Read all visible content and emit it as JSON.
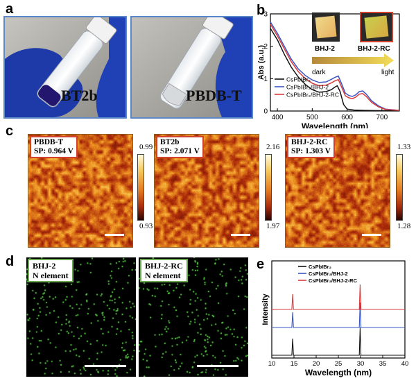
{
  "panels": {
    "a": "a",
    "b": "b",
    "c": "c",
    "d": "d",
    "e": "e"
  },
  "panel_a": {
    "photos": [
      {
        "label": "BT2b"
      },
      {
        "label": "PBDB-T"
      }
    ]
  },
  "panel_b": {
    "inset": {
      "left_label": "BHJ-2",
      "right_label": "BHJ-2-RC",
      "arrow_left": "dark",
      "arrow_right": "light"
    },
    "legend_labels": [
      "CsPbIBr₂",
      "CsPbIBr₂/BHJ-2",
      "CsPbIBr₂/BHJ-2-RC"
    ],
    "chart_data": {
      "type": "line",
      "title": "",
      "xlabel": "Wavelength (nm)",
      "ylabel": "Abs (a.u.)",
      "xlim": [
        380,
        750
      ],
      "ylim": [
        0,
        3
      ],
      "xticks": [
        400,
        500,
        600,
        700
      ],
      "yticks": [
        0,
        1,
        2,
        3
      ],
      "series": [
        {
          "name": "CsPbIBr₂",
          "color": "#111111",
          "x": [
            380,
            400,
            420,
            440,
            460,
            480,
            500,
            520,
            540,
            555,
            565,
            572,
            580,
            590,
            600,
            620,
            650,
            700,
            750
          ],
          "y": [
            2.55,
            2.2,
            1.75,
            1.35,
            1.05,
            0.82,
            0.66,
            0.58,
            0.6,
            0.66,
            0.74,
            0.78,
            0.6,
            0.2,
            0.06,
            0.03,
            0.02,
            0.01,
            0.01
          ]
        },
        {
          "name": "CsPbIBr₂/BHJ-2",
          "color": "#3b55c4",
          "x": [
            380,
            400,
            420,
            440,
            460,
            480,
            500,
            520,
            540,
            555,
            565,
            575,
            585,
            595,
            605,
            615,
            625,
            635,
            645,
            655,
            670,
            690,
            710,
            750
          ],
          "y": [
            2.75,
            2.4,
            2.0,
            1.6,
            1.3,
            1.1,
            0.96,
            0.88,
            0.9,
            0.98,
            1.04,
            1.08,
            0.82,
            0.55,
            0.48,
            0.45,
            0.5,
            0.6,
            0.62,
            0.52,
            0.32,
            0.16,
            0.06,
            0.02
          ]
        },
        {
          "name": "CsPbIBr₂/BHJ-2-RC",
          "color": "#d93a3a",
          "x": [
            380,
            400,
            420,
            440,
            460,
            480,
            500,
            520,
            540,
            555,
            565,
            575,
            585,
            595,
            605,
            615,
            625,
            635,
            645,
            655,
            670,
            690,
            710,
            750
          ],
          "y": [
            2.68,
            2.32,
            1.92,
            1.52,
            1.22,
            1.0,
            0.86,
            0.78,
            0.8,
            0.87,
            0.93,
            0.97,
            0.72,
            0.47,
            0.41,
            0.38,
            0.43,
            0.52,
            0.54,
            0.45,
            0.27,
            0.13,
            0.05,
            0.02
          ]
        }
      ]
    }
  },
  "panel_c": {
    "images": [
      {
        "name": "PBDB-T",
        "sp": "SP: 0.964 V",
        "cmax": "0.99",
        "cmin": "0.93"
      },
      {
        "name": "BT2b",
        "sp": "SP: 2.071 V",
        "cmax": "2.16",
        "cmin": "1.97"
      },
      {
        "name": "BHJ-2-RC",
        "sp": "SP: 1.303 V",
        "cmax": "1.33",
        "cmin": "1.28"
      }
    ]
  },
  "panel_d": {
    "maps": [
      {
        "line1": "BHJ-2",
        "line2": "N element"
      },
      {
        "line1": "BHJ-2-RC",
        "line2": "N element"
      }
    ]
  },
  "panel_e": {
    "legend_labels": [
      "CsPbIBr₂",
      "CsPbIBr₂/BHJ-2",
      "CsPbIBr₂/BHJ-2-RC"
    ],
    "chart_data": {
      "type": "line",
      "title": "",
      "xlabel": "Wavelength (nm)",
      "ylabel": "Intensity",
      "xlim": [
        10,
        40
      ],
      "xticks": [
        10,
        15,
        20,
        25,
        30,
        35,
        40
      ],
      "peaks": [
        14.7,
        29.9
      ],
      "series": [
        {
          "name": "CsPbIBr₂",
          "color": "#111111"
        },
        {
          "name": "CsPbIBr₂/BHJ-2",
          "color": "#3b55c4"
        },
        {
          "name": "CsPbIBr₂/BHJ-2-RC",
          "color": "#d93a3a"
        }
      ]
    }
  }
}
